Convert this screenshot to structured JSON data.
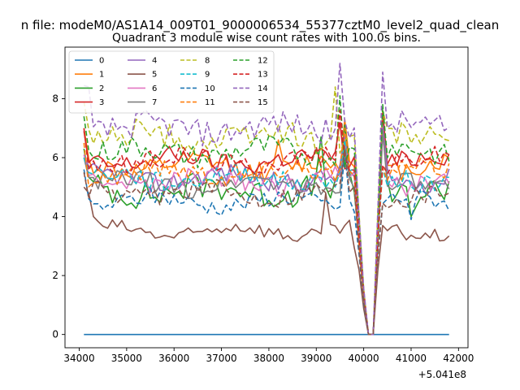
{
  "chart_data": {
    "type": "line",
    "suptitle": "n file: modeM0/AS1A14_009T01_9000006534_55377cztM0_level2_quad_clean",
    "title": "Quadrant 3 module wise count rates with 100.0s bins.",
    "xlabel": "",
    "ylabel": "",
    "x_offset_label": "+5.041e8",
    "xlim": [
      33700,
      42200
    ],
    "ylim": [
      -0.45,
      9.75
    ],
    "xticks": [
      34000,
      35000,
      36000,
      37000,
      38000,
      39000,
      40000,
      41000,
      42000
    ],
    "xtick_labels": [
      "34000",
      "35000",
      "36000",
      "37000",
      "38000",
      "39000",
      "40000",
      "41000",
      "42000"
    ],
    "yticks": [
      0,
      2,
      4,
      6,
      8
    ],
    "ytick_labels": [
      "0",
      "2",
      "4",
      "6",
      "8"
    ],
    "grid": false,
    "legend": {
      "position": "upper-left",
      "columns": 4
    },
    "x_start": 34100,
    "x_step": 100,
    "x_end": 41800,
    "gap_interval": [
      40000,
      40250
    ],
    "gap_profile": [
      {
        "x": 39900,
        "f": 0.62
      },
      {
        "x": 40000,
        "f": 0.24
      },
      {
        "x": 40100,
        "f": 0.0
      },
      {
        "x": 40200,
        "f": 0.0
      },
      {
        "x": 40300,
        "f": 0.58
      }
    ],
    "series": [
      {
        "name": "0",
        "color": "#1f77b4",
        "dash": "",
        "base": 0.0,
        "amp": 0.0,
        "seed": 0,
        "spikes": []
      },
      {
        "name": "1",
        "color": "#ff7f0e",
        "dash": "",
        "base": 5.7,
        "amp": 0.35,
        "seed": 11,
        "spikes": [
          {
            "x": 34100,
            "v": 7.0
          },
          {
            "x": 38200,
            "v": 6.6
          },
          {
            "x": 39600,
            "v": 7.3
          },
          {
            "x": 40400,
            "v": 7.4
          }
        ]
      },
      {
        "name": "2",
        "color": "#2ca02c",
        "dash": "",
        "base": 4.9,
        "amp": 0.5,
        "seed": 23,
        "spikes": [
          {
            "x": 34100,
            "v": 6.3
          },
          {
            "x": 39100,
            "v": 6.7
          },
          {
            "x": 39600,
            "v": 7.1
          },
          {
            "x": 40400,
            "v": 7.5
          },
          {
            "x": 41000,
            "v": 4.0
          }
        ]
      },
      {
        "name": "3",
        "color": "#d62728",
        "dash": "",
        "base": 5.9,
        "amp": 0.35,
        "seed": 37,
        "spikes": [
          {
            "x": 34100,
            "v": 6.9
          },
          {
            "x": 39500,
            "v": 7.2
          },
          {
            "x": 40400,
            "v": 7.6
          }
        ]
      },
      {
        "name": "4",
        "color": "#9467bd",
        "dash": "",
        "base": 5.3,
        "amp": 0.35,
        "seed": 41,
        "spikes": [
          {
            "x": 34100,
            "v": 6.1
          },
          {
            "x": 39600,
            "v": 6.8
          },
          {
            "x": 40400,
            "v": 7.1
          }
        ]
      },
      {
        "name": "5",
        "color": "#8c564b",
        "dash": "",
        "base": 3.5,
        "amp": 0.25,
        "seed": 53,
        "spikes": [
          {
            "x": 34100,
            "v": 5.0
          },
          {
            "x": 34200,
            "v": 4.8
          },
          {
            "x": 34300,
            "v": 4.0
          },
          {
            "x": 39200,
            "v": 4.8
          },
          {
            "x": 39800,
            "v": 2.95
          },
          {
            "x": 40400,
            "v": 3.7
          }
        ]
      },
      {
        "name": "6",
        "color": "#e377c2",
        "dash": "",
        "base": 5.2,
        "amp": 0.35,
        "seed": 67,
        "spikes": [
          {
            "x": 34100,
            "v": 6.1
          },
          {
            "x": 39600,
            "v": 6.3
          },
          {
            "x": 40400,
            "v": 6.9
          }
        ]
      },
      {
        "name": "7",
        "color": "#7f7f7f",
        "dash": "",
        "base": 5.1,
        "amp": 0.35,
        "seed": 71,
        "spikes": [
          {
            "x": 34100,
            "v": 6.0
          },
          {
            "x": 39600,
            "v": 6.4
          },
          {
            "x": 40400,
            "v": 6.9
          }
        ]
      },
      {
        "name": "8",
        "color": "#bcbd22",
        "dash": "6,3",
        "base": 6.7,
        "amp": 0.45,
        "seed": 83,
        "spikes": [
          {
            "x": 34100,
            "v": 7.9
          },
          {
            "x": 39400,
            "v": 8.4
          },
          {
            "x": 40400,
            "v": 7.6
          }
        ]
      },
      {
        "name": "9",
        "color": "#17becf",
        "dash": "6,3",
        "base": 5.3,
        "amp": 0.35,
        "seed": 97,
        "spikes": [
          {
            "x": 34100,
            "v": 6.0
          },
          {
            "x": 39600,
            "v": 6.6
          }
        ]
      },
      {
        "name": "10",
        "color": "#1f77b4",
        "dash": "6,3",
        "base": 4.5,
        "amp": 0.3,
        "seed": 101,
        "spikes": [
          {
            "x": 34100,
            "v": 5.6
          },
          {
            "x": 39600,
            "v": 6.2
          },
          {
            "x": 41000,
            "v": 3.9
          }
        ]
      },
      {
        "name": "11",
        "color": "#ff7f0e",
        "dash": "6,3",
        "base": 5.5,
        "amp": 0.35,
        "seed": 113,
        "spikes": [
          {
            "x": 34100,
            "v": 6.5
          },
          {
            "x": 39600,
            "v": 7.0
          }
        ]
      },
      {
        "name": "12",
        "color": "#2ca02c",
        "dash": "6,3",
        "base": 6.2,
        "amp": 0.4,
        "seed": 127,
        "spikes": [
          {
            "x": 34100,
            "v": 7.4
          },
          {
            "x": 39500,
            "v": 8.1
          },
          {
            "x": 40400,
            "v": 7.8
          }
        ]
      },
      {
        "name": "13",
        "color": "#d62728",
        "dash": "6,3",
        "base": 5.9,
        "amp": 0.35,
        "seed": 131,
        "spikes": [
          {
            "x": 34100,
            "v": 7.0
          },
          {
            "x": 39500,
            "v": 7.6
          }
        ]
      },
      {
        "name": "14",
        "color": "#9467bd",
        "dash": "6,3",
        "base": 7.0,
        "amp": 0.45,
        "seed": 139,
        "spikes": [
          {
            "x": 34100,
            "v": 8.45
          },
          {
            "x": 34200,
            "v": 8.4
          },
          {
            "x": 39500,
            "v": 9.2
          },
          {
            "x": 40400,
            "v": 8.9
          }
        ]
      },
      {
        "name": "15",
        "color": "#8c564b",
        "dash": "6,3",
        "base": 4.8,
        "amp": 0.35,
        "seed": 149,
        "spikes": [
          {
            "x": 34100,
            "v": 5.5
          },
          {
            "x": 39600,
            "v": 6.3
          }
        ]
      }
    ]
  }
}
